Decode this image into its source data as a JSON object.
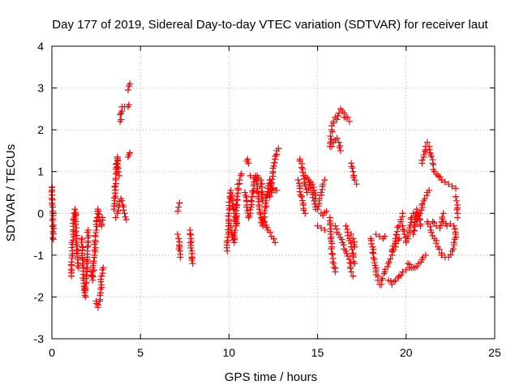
{
  "chart_data": {
    "type": "scatter",
    "title": "Day 177 of 2019, Sidereal Day-to-day VTEC variation (SDTVAR) for receiver laut",
    "xlabel": "GPS time / hours",
    "ylabel": "SDTVAR / TECUs",
    "xlim": [
      0,
      25
    ],
    "ylim": [
      -3,
      4
    ],
    "xticks": [
      "0",
      "5",
      "10",
      "15",
      "20",
      "25"
    ],
    "yticks": [
      "-3",
      "-2",
      "-1",
      "0",
      "1",
      "2",
      "3",
      "4"
    ],
    "grid": true,
    "marker": "+",
    "color": "#ff0000",
    "tracks": [
      [
        [
          0.0,
          0.63
        ],
        [
          0.01,
          0.62
        ],
        [
          0.03,
          0.2
        ],
        [
          0.05,
          0.05
        ],
        [
          0.08,
          -0.62
        ]
      ],
      [
        [
          1.1,
          -1.5
        ],
        [
          1.15,
          -0.9
        ],
        [
          1.2,
          -0.5
        ],
        [
          1.25,
          0.0
        ],
        [
          1.3,
          0.1
        ],
        [
          1.35,
          -0.2
        ],
        [
          1.4,
          -0.6
        ],
        [
          1.45,
          -1.1
        ],
        [
          1.5,
          -1.3
        ]
      ],
      [
        [
          1.7,
          -0.6
        ],
        [
          1.75,
          -1.2
        ],
        [
          1.8,
          -1.6
        ],
        [
          1.85,
          -1.9
        ],
        [
          1.9,
          -2.0
        ],
        [
          1.95,
          -1.5
        ],
        [
          2.0,
          -0.9
        ],
        [
          2.05,
          -0.4
        ]
      ],
      [
        [
          2.2,
          -1.4
        ],
        [
          2.3,
          -1.6
        ],
        [
          2.4,
          -1.0
        ],
        [
          2.5,
          -0.4
        ],
        [
          2.55,
          -0.1
        ],
        [
          2.6,
          0.1
        ],
        [
          2.7,
          -0.2
        ],
        [
          2.8,
          -0.3
        ],
        [
          2.85,
          -0.1
        ]
      ],
      [
        [
          2.5,
          -2.1
        ],
        [
          2.6,
          -2.25
        ],
        [
          2.7,
          -2.1
        ],
        [
          2.75,
          -1.9
        ],
        [
          2.8,
          -1.5
        ],
        [
          2.85,
          -1.35
        ],
        [
          2.9,
          -1.3
        ]
      ],
      [
        [
          3.5,
          0.1
        ],
        [
          3.55,
          0.3
        ],
        [
          3.6,
          0.8
        ],
        [
          3.65,
          1.1
        ],
        [
          3.7,
          1.35
        ],
        [
          3.75,
          1.0
        ],
        [
          3.8,
          0.9
        ]
      ],
      [
        [
          3.6,
          -0.1
        ],
        [
          3.7,
          0.0
        ],
        [
          3.8,
          0.2
        ],
        [
          3.9,
          0.35
        ],
        [
          4.0,
          0.2
        ],
        [
          4.1,
          0.0
        ],
        [
          4.2,
          -0.15
        ]
      ],
      [
        [
          3.85,
          2.2
        ],
        [
          3.9,
          2.4
        ],
        [
          3.95,
          2.55
        ],
        [
          4.1,
          2.55
        ],
        [
          4.3,
          2.55
        ],
        [
          4.35,
          2.6
        ]
      ],
      [
        [
          4.3,
          2.95
        ],
        [
          4.35,
          3.05
        ],
        [
          4.4,
          3.1
        ]
      ],
      [
        [
          4.3,
          1.35
        ],
        [
          4.35,
          1.4
        ],
        [
          4.4,
          1.45
        ]
      ],
      [
        [
          7.1,
          0.05
        ],
        [
          7.15,
          0.15
        ],
        [
          7.2,
          0.25
        ]
      ],
      [
        [
          7.1,
          -0.5
        ],
        [
          7.15,
          -0.6
        ],
        [
          7.2,
          -0.8
        ],
        [
          7.25,
          -1.05
        ]
      ],
      [
        [
          7.8,
          -0.4
        ],
        [
          7.85,
          -0.6
        ],
        [
          7.9,
          -0.9
        ],
        [
          7.95,
          -1.2
        ]
      ],
      [
        [
          9.9,
          -0.9
        ],
        [
          9.95,
          -0.5
        ],
        [
          10.0,
          0.0
        ],
        [
          10.05,
          0.4
        ],
        [
          10.1,
          0.55
        ],
        [
          10.2,
          0.3
        ],
        [
          10.3,
          0.0
        ],
        [
          10.4,
          -0.3
        ],
        [
          10.5,
          0.6
        ],
        [
          10.6,
          0.8
        ],
        [
          10.7,
          0.95
        ]
      ],
      [
        [
          10.1,
          -0.3
        ],
        [
          10.2,
          -0.5
        ],
        [
          10.3,
          -0.7
        ],
        [
          10.35,
          -0.4
        ]
      ],
      [
        [
          11.0,
          1.25
        ],
        [
          11.05,
          1.3
        ],
        [
          11.1,
          1.2
        ]
      ],
      [
        [
          10.9,
          0.5
        ],
        [
          11.0,
          0.2
        ],
        [
          11.1,
          -0.1
        ],
        [
          11.2,
          0.0
        ],
        [
          11.3,
          0.4
        ],
        [
          11.4,
          0.7
        ],
        [
          11.5,
          0.9
        ],
        [
          11.6,
          0.6
        ],
        [
          11.7,
          0.2
        ],
        [
          11.8,
          -0.1
        ],
        [
          11.9,
          -0.3
        ],
        [
          12.0,
          0.0
        ],
        [
          12.1,
          0.3
        ],
        [
          12.2,
          0.6
        ],
        [
          12.3,
          0.8
        ],
        [
          12.4,
          0.5
        ]
      ],
      [
        [
          11.2,
          0.9
        ],
        [
          11.4,
          0.85
        ],
        [
          11.6,
          0.9
        ],
        [
          11.8,
          0.8
        ],
        [
          11.9,
          0.3
        ]
      ],
      [
        [
          12.0,
          -0.2
        ],
        [
          12.2,
          -0.4
        ],
        [
          12.4,
          -0.55
        ],
        [
          12.6,
          -0.7
        ]
      ],
      [
        [
          12.3,
          0.4
        ],
        [
          12.4,
          0.7
        ],
        [
          12.5,
          1.0
        ],
        [
          12.6,
          1.3
        ],
        [
          12.7,
          1.5
        ],
        [
          12.8,
          1.55
        ]
      ],
      [
        [
          12.5,
          0.6
        ],
        [
          12.6,
          0.55
        ],
        [
          12.7,
          0.55
        ]
      ],
      [
        [
          14.0,
          1.3
        ],
        [
          14.1,
          1.1
        ],
        [
          14.2,
          0.9
        ],
        [
          14.3,
          0.7
        ],
        [
          14.4,
          0.5
        ]
      ],
      [
        [
          13.9,
          0.8
        ],
        [
          14.0,
          0.6
        ],
        [
          14.1,
          0.4
        ],
        [
          14.2,
          0.2
        ],
        [
          14.3,
          0.0
        ]
      ],
      [
        [
          14.3,
          0.9
        ],
        [
          14.4,
          0.85
        ],
        [
          14.5,
          0.8
        ],
        [
          14.6,
          0.6
        ],
        [
          14.7,
          0.5
        ],
        [
          14.8,
          0.3
        ],
        [
          14.9,
          0.1
        ]
      ],
      [
        [
          14.5,
          0.6
        ],
        [
          14.6,
          0.75
        ],
        [
          14.7,
          0.7
        ],
        [
          14.8,
          0.55
        ],
        [
          14.9,
          0.35
        ]
      ],
      [
        [
          15.0,
          0.1
        ],
        [
          15.1,
          0.3
        ],
        [
          15.2,
          0.5
        ],
        [
          15.3,
          0.7
        ],
        [
          15.4,
          0.8
        ]
      ],
      [
        [
          15.0,
          -0.3
        ],
        [
          15.2,
          -0.35
        ],
        [
          15.4,
          -0.4
        ]
      ],
      [
        [
          15.2,
          0.0
        ],
        [
          15.3,
          -0.05
        ],
        [
          15.5,
          0.05
        ]
      ],
      [
        [
          15.7,
          1.6
        ],
        [
          15.8,
          2.0
        ],
        [
          15.9,
          2.2
        ],
        [
          16.0,
          2.3
        ],
        [
          16.1,
          2.25
        ],
        [
          16.2,
          2.4
        ],
        [
          16.3,
          2.5
        ],
        [
          16.4,
          2.45
        ],
        [
          16.5,
          2.4
        ]
      ],
      [
        [
          16.5,
          2.3
        ],
        [
          16.6,
          2.3
        ],
        [
          16.7,
          2.3
        ],
        [
          16.8,
          2.2
        ]
      ],
      [
        [
          15.8,
          1.6
        ],
        [
          15.9,
          1.7
        ],
        [
          16.0,
          1.75
        ],
        [
          16.1,
          1.8
        ],
        [
          16.2,
          1.7
        ],
        [
          16.3,
          1.5
        ]
      ],
      [
        [
          15.7,
          -0.1
        ],
        [
          15.75,
          -0.5
        ],
        [
          15.8,
          -0.8
        ],
        [
          15.9,
          -1.2
        ],
        [
          16.0,
          -1.4
        ]
      ],
      [
        [
          16.0,
          -0.3
        ],
        [
          16.2,
          -0.5
        ],
        [
          16.4,
          -0.7
        ],
        [
          16.6,
          -0.9
        ],
        [
          16.8,
          -1.1
        ],
        [
          16.9,
          -1.4
        ],
        [
          17.0,
          -1.5
        ]
      ],
      [
        [
          16.9,
          1.2
        ],
        [
          17.0,
          1.0
        ],
        [
          17.1,
          0.8
        ],
        [
          17.2,
          0.7
        ]
      ],
      [
        [
          16.6,
          -0.3
        ],
        [
          16.7,
          -0.45
        ],
        [
          16.8,
          -0.6
        ],
        [
          16.9,
          -0.8
        ],
        [
          17.0,
          -1.0
        ],
        [
          17.1,
          -1.2
        ]
      ],
      [
        [
          16.9,
          -0.5
        ],
        [
          17.0,
          -0.6
        ],
        [
          17.1,
          -0.8
        ]
      ],
      [
        [
          18.0,
          -0.6
        ],
        [
          18.1,
          -0.8
        ],
        [
          18.2,
          -1.1
        ],
        [
          18.3,
          -1.4
        ],
        [
          18.4,
          -1.6
        ],
        [
          18.5,
          -1.7
        ],
        [
          18.6,
          -1.7
        ]
      ],
      [
        [
          18.3,
          -0.5
        ],
        [
          18.5,
          -0.55
        ],
        [
          18.7,
          -0.6
        ],
        [
          18.8,
          -0.55
        ]
      ],
      [
        [
          18.6,
          -1.6
        ],
        [
          18.8,
          -1.4
        ],
        [
          19.0,
          -1.2
        ],
        [
          19.2,
          -1.0
        ],
        [
          19.4,
          -0.8
        ],
        [
          19.6,
          -0.6
        ]
      ],
      [
        [
          19.0,
          -1.6
        ],
        [
          19.2,
          -1.7
        ],
        [
          19.4,
          -1.6
        ],
        [
          19.6,
          -1.5
        ],
        [
          19.8,
          -1.4
        ],
        [
          20.0,
          -1.35
        ],
        [
          20.2,
          -1.3
        ],
        [
          20.4,
          -1.3
        ]
      ],
      [
        [
          19.2,
          -0.9
        ],
        [
          19.4,
          -0.6
        ],
        [
          19.6,
          -0.3
        ],
        [
          19.7,
          -0.2
        ],
        [
          19.8,
          0.0
        ]
      ],
      [
        [
          19.8,
          -0.3
        ],
        [
          19.9,
          -0.5
        ],
        [
          20.0,
          -0.7
        ],
        [
          20.1,
          -0.6
        ],
        [
          20.2,
          -0.4
        ],
        [
          20.3,
          -0.1
        ],
        [
          20.4,
          0.0
        ]
      ],
      [
        [
          20.1,
          -1.2
        ],
        [
          20.3,
          -1.3
        ],
        [
          20.5,
          -1.3
        ],
        [
          20.7,
          -1.2
        ],
        [
          20.9,
          -1.1
        ],
        [
          21.1,
          -1.0
        ]
      ],
      [
        [
          20.6,
          -0.2
        ],
        [
          20.8,
          0.0
        ],
        [
          21.0,
          0.3
        ],
        [
          21.2,
          0.5
        ],
        [
          21.3,
          0.55
        ]
      ],
      [
        [
          20.4,
          -0.5
        ],
        [
          20.5,
          -0.2
        ],
        [
          20.6,
          0.1
        ],
        [
          20.7,
          0.0
        ],
        [
          20.8,
          -0.3
        ]
      ],
      [
        [
          20.9,
          1.2
        ],
        [
          21.0,
          1.4
        ],
        [
          21.1,
          1.6
        ],
        [
          21.2,
          1.7
        ],
        [
          21.3,
          1.6
        ],
        [
          21.4,
          1.4
        ],
        [
          21.5,
          1.2
        ],
        [
          21.6,
          1.0
        ],
        [
          21.8,
          0.9
        ],
        [
          22.0,
          0.8
        ]
      ],
      [
        [
          21.2,
          -0.2
        ],
        [
          21.4,
          -0.4
        ],
        [
          21.6,
          -0.6
        ],
        [
          21.8,
          -0.8
        ],
        [
          22.0,
          -0.95
        ]
      ],
      [
        [
          21.5,
          -0.2
        ],
        [
          21.7,
          -0.3
        ],
        [
          21.9,
          -0.35
        ],
        [
          22.0,
          -0.2
        ],
        [
          22.1,
          0.0
        ]
      ],
      [
        [
          22.0,
          -1.0
        ],
        [
          22.2,
          -1.05
        ],
        [
          22.4,
          -1.05
        ],
        [
          22.6,
          -0.9
        ],
        [
          22.7,
          -0.7
        ],
        [
          22.8,
          -0.5
        ]
      ],
      [
        [
          22.0,
          0.8
        ],
        [
          22.2,
          0.75
        ],
        [
          22.4,
          0.7
        ],
        [
          22.6,
          0.65
        ],
        [
          22.8,
          0.6
        ]
      ],
      [
        [
          22.1,
          -0.2
        ],
        [
          22.3,
          -0.3
        ],
        [
          22.5,
          -0.25
        ],
        [
          22.7,
          -0.3
        ],
        [
          22.8,
          -0.5
        ]
      ],
      [
        [
          22.8,
          0.4
        ],
        [
          22.85,
          0.3
        ],
        [
          22.9,
          0.2
        ],
        [
          22.9,
          0.0
        ],
        [
          22.9,
          -0.1
        ]
      ]
    ]
  }
}
